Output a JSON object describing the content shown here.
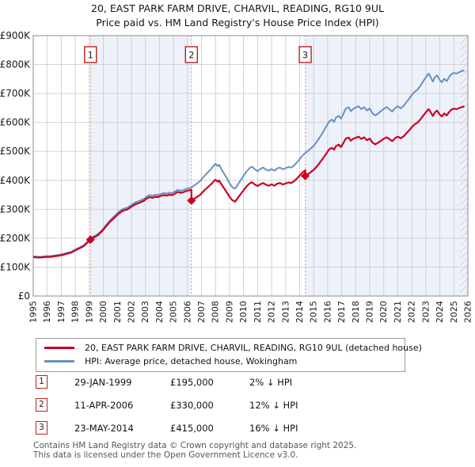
{
  "title": {
    "line1": "20, EAST PARK FARM DRIVE, CHARVIL, READING, RG10 9UL",
    "line2": "Price paid vs. HM Land Registry's House Price Index (HPI)"
  },
  "colors": {
    "price_paid_line": "#cc0022",
    "hpi_line": "#6691c2",
    "ownership_band": "#edf1f9",
    "gridline": "#cdcdcd",
    "plot_border": "#8a8a8a",
    "sale_dashed_line": "#ef8a8a",
    "marker_box_border": "#bb2020",
    "axis_text": "#1a1a1a",
    "hatch_line": "#b5bac3"
  },
  "chart_data": {
    "type": "line",
    "title": "20, EAST PARK FARM DRIVE, CHARVIL, READING, RG10 9UL — Price paid vs. HPI",
    "x_axis": {
      "range": [
        1995,
        2026
      ],
      "tick_years": [
        1995,
        1996,
        1997,
        1998,
        1999,
        2000,
        2001,
        2002,
        2003,
        2004,
        2005,
        2006,
        2007,
        2008,
        2009,
        2010,
        2011,
        2012,
        2013,
        2014,
        2015,
        2016,
        2017,
        2018,
        2019,
        2020,
        2021,
        2022,
        2023,
        2024,
        2025,
        2026
      ]
    },
    "y_axis": {
      "range_gbp_k": [
        0,
        900
      ],
      "tick_step_k": 100,
      "tick_labels": [
        "£0",
        "£100K",
        "£200K",
        "£300K",
        "£400K",
        "£500K",
        "£600K",
        "£700K",
        "£800K",
        "£900K"
      ]
    },
    "hpi_series": {
      "name": "HPI: Average price, detached house, Wokingham",
      "units": "GBP thousands",
      "points_k": [
        [
          1995.0,
          137
        ],
        [
          1995.3,
          136
        ],
        [
          1995.6,
          136
        ],
        [
          1995.9,
          138
        ],
        [
          1996.2,
          138
        ],
        [
          1996.5,
          140
        ],
        [
          1996.8,
          142
        ],
        [
          1997.1,
          145
        ],
        [
          1997.4,
          149
        ],
        [
          1997.7,
          153
        ],
        [
          1998.0,
          161
        ],
        [
          1998.3,
          168
        ],
        [
          1998.6,
          176
        ],
        [
          1998.85,
          188
        ],
        [
          1999.08,
          199
        ],
        [
          1999.3,
          206
        ],
        [
          1999.6,
          214
        ],
        [
          1999.9,
          228
        ],
        [
          2000.2,
          246
        ],
        [
          2000.5,
          263
        ],
        [
          2000.8,
          277
        ],
        [
          2001.1,
          291
        ],
        [
          2001.4,
          301
        ],
        [
          2001.7,
          305
        ],
        [
          2002.0,
          315
        ],
        [
          2002.3,
          324
        ],
        [
          2002.6,
          329
        ],
        [
          2002.9,
          336
        ],
        [
          2003.1,
          344
        ],
        [
          2003.3,
          349
        ],
        [
          2003.5,
          346
        ],
        [
          2003.7,
          350
        ],
        [
          2003.9,
          349
        ],
        [
          2004.1,
          353
        ],
        [
          2004.3,
          356
        ],
        [
          2004.5,
          354
        ],
        [
          2004.7,
          357
        ],
        [
          2004.9,
          356
        ],
        [
          2005.1,
          361
        ],
        [
          2005.3,
          367
        ],
        [
          2005.5,
          364
        ],
        [
          2005.7,
          366
        ],
        [
          2005.9,
          370
        ],
        [
          2006.28,
          375
        ],
        [
          2006.6,
          386
        ],
        [
          2006.9,
          397
        ],
        [
          2007.1,
          409
        ],
        [
          2007.3,
          420
        ],
        [
          2007.5,
          430
        ],
        [
          2007.7,
          440
        ],
        [
          2007.9,
          452
        ],
        [
          2008.0,
          457
        ],
        [
          2008.15,
          449
        ],
        [
          2008.25,
          454
        ],
        [
          2008.5,
          432
        ],
        [
          2008.75,
          412
        ],
        [
          2009.0,
          390
        ],
        [
          2009.2,
          376
        ],
        [
          2009.4,
          371
        ],
        [
          2009.6,
          386
        ],
        [
          2009.8,
          401
        ],
        [
          2010.0,
          415
        ],
        [
          2010.2,
          430
        ],
        [
          2010.45,
          443
        ],
        [
          2010.6,
          447
        ],
        [
          2010.8,
          438
        ],
        [
          2011.0,
          432
        ],
        [
          2011.2,
          439
        ],
        [
          2011.4,
          444
        ],
        [
          2011.6,
          437
        ],
        [
          2011.8,
          433
        ],
        [
          2012.0,
          439
        ],
        [
          2012.2,
          433
        ],
        [
          2012.4,
          441
        ],
        [
          2012.6,
          444
        ],
        [
          2012.8,
          438
        ],
        [
          2013.0,
          442
        ],
        [
          2013.2,
          446
        ],
        [
          2013.4,
          444
        ],
        [
          2013.6,
          451
        ],
        [
          2013.8,
          461
        ],
        [
          2014.0,
          473
        ],
        [
          2014.2,
          485
        ],
        [
          2014.4,
          494
        ],
        [
          2014.7,
          506
        ],
        [
          2015.0,
          519
        ],
        [
          2015.3,
          538
        ],
        [
          2015.6,
          561
        ],
        [
          2015.9,
          586
        ],
        [
          2016.1,
          603
        ],
        [
          2016.3,
          610
        ],
        [
          2016.45,
          602
        ],
        [
          2016.6,
          617
        ],
        [
          2016.8,
          623
        ],
        [
          2016.95,
          613
        ],
        [
          2017.1,
          628
        ],
        [
          2017.3,
          648
        ],
        [
          2017.5,
          652
        ],
        [
          2017.65,
          639
        ],
        [
          2017.8,
          646
        ],
        [
          2018.0,
          651
        ],
        [
          2018.2,
          656
        ],
        [
          2018.4,
          646
        ],
        [
          2018.6,
          653
        ],
        [
          2018.8,
          641
        ],
        [
          2019.0,
          648
        ],
        [
          2019.2,
          631
        ],
        [
          2019.4,
          624
        ],
        [
          2019.6,
          631
        ],
        [
          2019.8,
          639
        ],
        [
          2020.0,
          647
        ],
        [
          2020.2,
          653
        ],
        [
          2020.4,
          646
        ],
        [
          2020.6,
          637
        ],
        [
          2020.8,
          649
        ],
        [
          2021.0,
          656
        ],
        [
          2021.2,
          649
        ],
        [
          2021.4,
          656
        ],
        [
          2021.6,
          669
        ],
        [
          2021.8,
          681
        ],
        [
          2022.0,
          695
        ],
        [
          2022.2,
          706
        ],
        [
          2022.4,
          713
        ],
        [
          2022.6,
          726
        ],
        [
          2022.8,
          741
        ],
        [
          2023.0,
          756
        ],
        [
          2023.2,
          769
        ],
        [
          2023.35,
          756
        ],
        [
          2023.5,
          741
        ],
        [
          2023.65,
          756
        ],
        [
          2023.8,
          763
        ],
        [
          2024.0,
          746
        ],
        [
          2024.15,
          739
        ],
        [
          2024.3,
          751
        ],
        [
          2024.5,
          743
        ],
        [
          2024.65,
          756
        ],
        [
          2024.8,
          766
        ],
        [
          2025.0,
          771
        ],
        [
          2025.2,
          769
        ],
        [
          2025.45,
          775
        ],
        [
          2025.6,
          778
        ],
        [
          2025.75,
          780
        ]
      ]
    },
    "price_paid_series": {
      "name": "20, EAST PARK FARM DRIVE, CHARVIL, READING, RG10 9UL (detached house)",
      "rule": "HPI series scaled to each sale price between consecutive sales (vertical step at each sale)"
    },
    "sales": [
      {
        "n": "1",
        "date": "29-JAN-1999",
        "year": 1999.08,
        "price_k": 195,
        "price": "£195,000",
        "pct_vs_hpi": "2% ↓ HPI",
        "ratio": 0.98
      },
      {
        "n": "2",
        "date": "11-APR-2006",
        "year": 2006.28,
        "price_k": 330,
        "price": "£330,000",
        "pct_vs_hpi": "12% ↓ HPI",
        "ratio": 0.88
      },
      {
        "n": "3",
        "date": "23-MAY-2014",
        "year": 2014.4,
        "price_k": 415,
        "price": "£415,000",
        "pct_vs_hpi": "16% ↓ HPI",
        "ratio": 0.84
      }
    ],
    "ownership_bands": [
      [
        1999.08,
        2006.28
      ],
      [
        2014.4,
        2026
      ]
    ],
    "hatch_from_year": 2025.45,
    "grid": "on",
    "legend_position": "below"
  },
  "legend": {
    "items": [
      {
        "label": "20, EAST PARK FARM DRIVE, CHARVIL, READING, RG10 9UL (detached house)",
        "color": "#cc0022"
      },
      {
        "label": "HPI: Average price, detached house, Wokingham",
        "color": "#6691c2"
      }
    ]
  },
  "table": {
    "rows": [
      {
        "num": "1",
        "date": "29-JAN-1999",
        "price": "£195,000",
        "pct": "2% ↓ HPI"
      },
      {
        "num": "2",
        "date": "11-APR-2006",
        "price": "£330,000",
        "pct": "12% ↓ HPI"
      },
      {
        "num": "3",
        "date": "23-MAY-2014",
        "price": "£415,000",
        "pct": "16% ↓ HPI"
      }
    ]
  },
  "footer": {
    "line1": "Contains HM Land Registry data © Crown copyright and database right 2025.",
    "line2": "This data is licensed under the Open Government Licence v3.0."
  }
}
